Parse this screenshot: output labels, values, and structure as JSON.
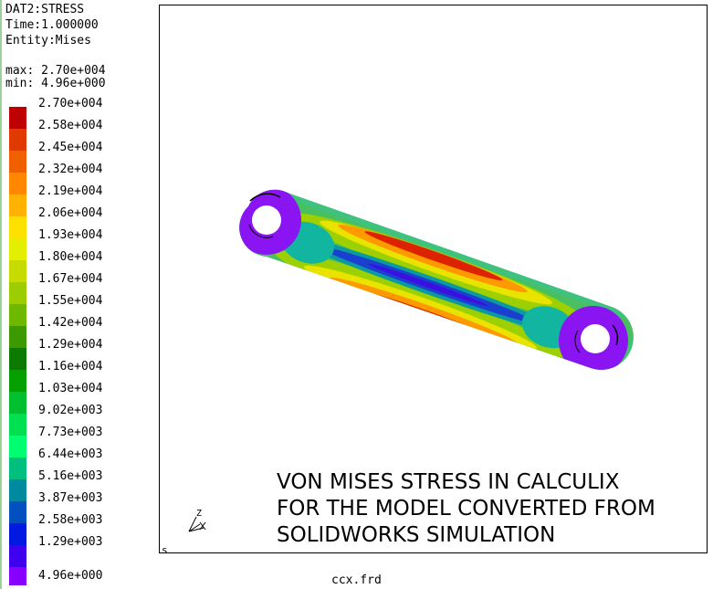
{
  "header": {
    "dataset": "DAT2:STRESS",
    "time": "Time:1.000000",
    "entity": "Entity:Mises",
    "max": "max: 2.70e+004",
    "min": "min: 4.96e+000"
  },
  "legend": {
    "entries": [
      {
        "label": "2.70e+004",
        "color": "#c00000"
      },
      {
        "label": "2.58e+004",
        "color": "#e03a00"
      },
      {
        "label": "2.45e+004",
        "color": "#f06000"
      },
      {
        "label": "2.32e+004",
        "color": "#ff8800"
      },
      {
        "label": "2.19e+004",
        "color": "#ffb300"
      },
      {
        "label": "2.06e+004",
        "color": "#ffe100"
      },
      {
        "label": "1.93e+004",
        "color": "#e4ee00"
      },
      {
        "label": "1.80e+004",
        "color": "#c6dc00"
      },
      {
        "label": "1.67e+004",
        "color": "#9ccd00"
      },
      {
        "label": "1.55e+004",
        "color": "#6eb800"
      },
      {
        "label": "1.42e+004",
        "color": "#3c9a00"
      },
      {
        "label": "1.29e+004",
        "color": "#0a7a00"
      },
      {
        "label": "1.16e+004",
        "color": "#05a000"
      },
      {
        "label": "1.03e+004",
        "color": "#00c030"
      },
      {
        "label": "9.02e+003",
        "color": "#00e050"
      },
      {
        "label": "7.73e+003",
        "color": "#00ff70"
      },
      {
        "label": "6.44e+003",
        "color": "#00c080"
      },
      {
        "label": "5.16e+003",
        "color": "#008aa0"
      },
      {
        "label": "3.87e+003",
        "color": "#0050c0"
      },
      {
        "label": "2.58e+003",
        "color": "#0018e0"
      },
      {
        "label": "1.29e+003",
        "color": "#4000f0"
      },
      {
        "label": "4.96e+000",
        "color": "#8800ff"
      }
    ]
  },
  "viewport": {
    "caption_lines": [
      "VON MISES STRESS IN CALCULIX",
      "FOR THE MODEL CONVERTED FROM",
      "SOLIDWORKS SIMULATION"
    ],
    "axis_label": "Z",
    "corner_mark": "s"
  },
  "footer": {
    "file": "ccx.frd"
  }
}
